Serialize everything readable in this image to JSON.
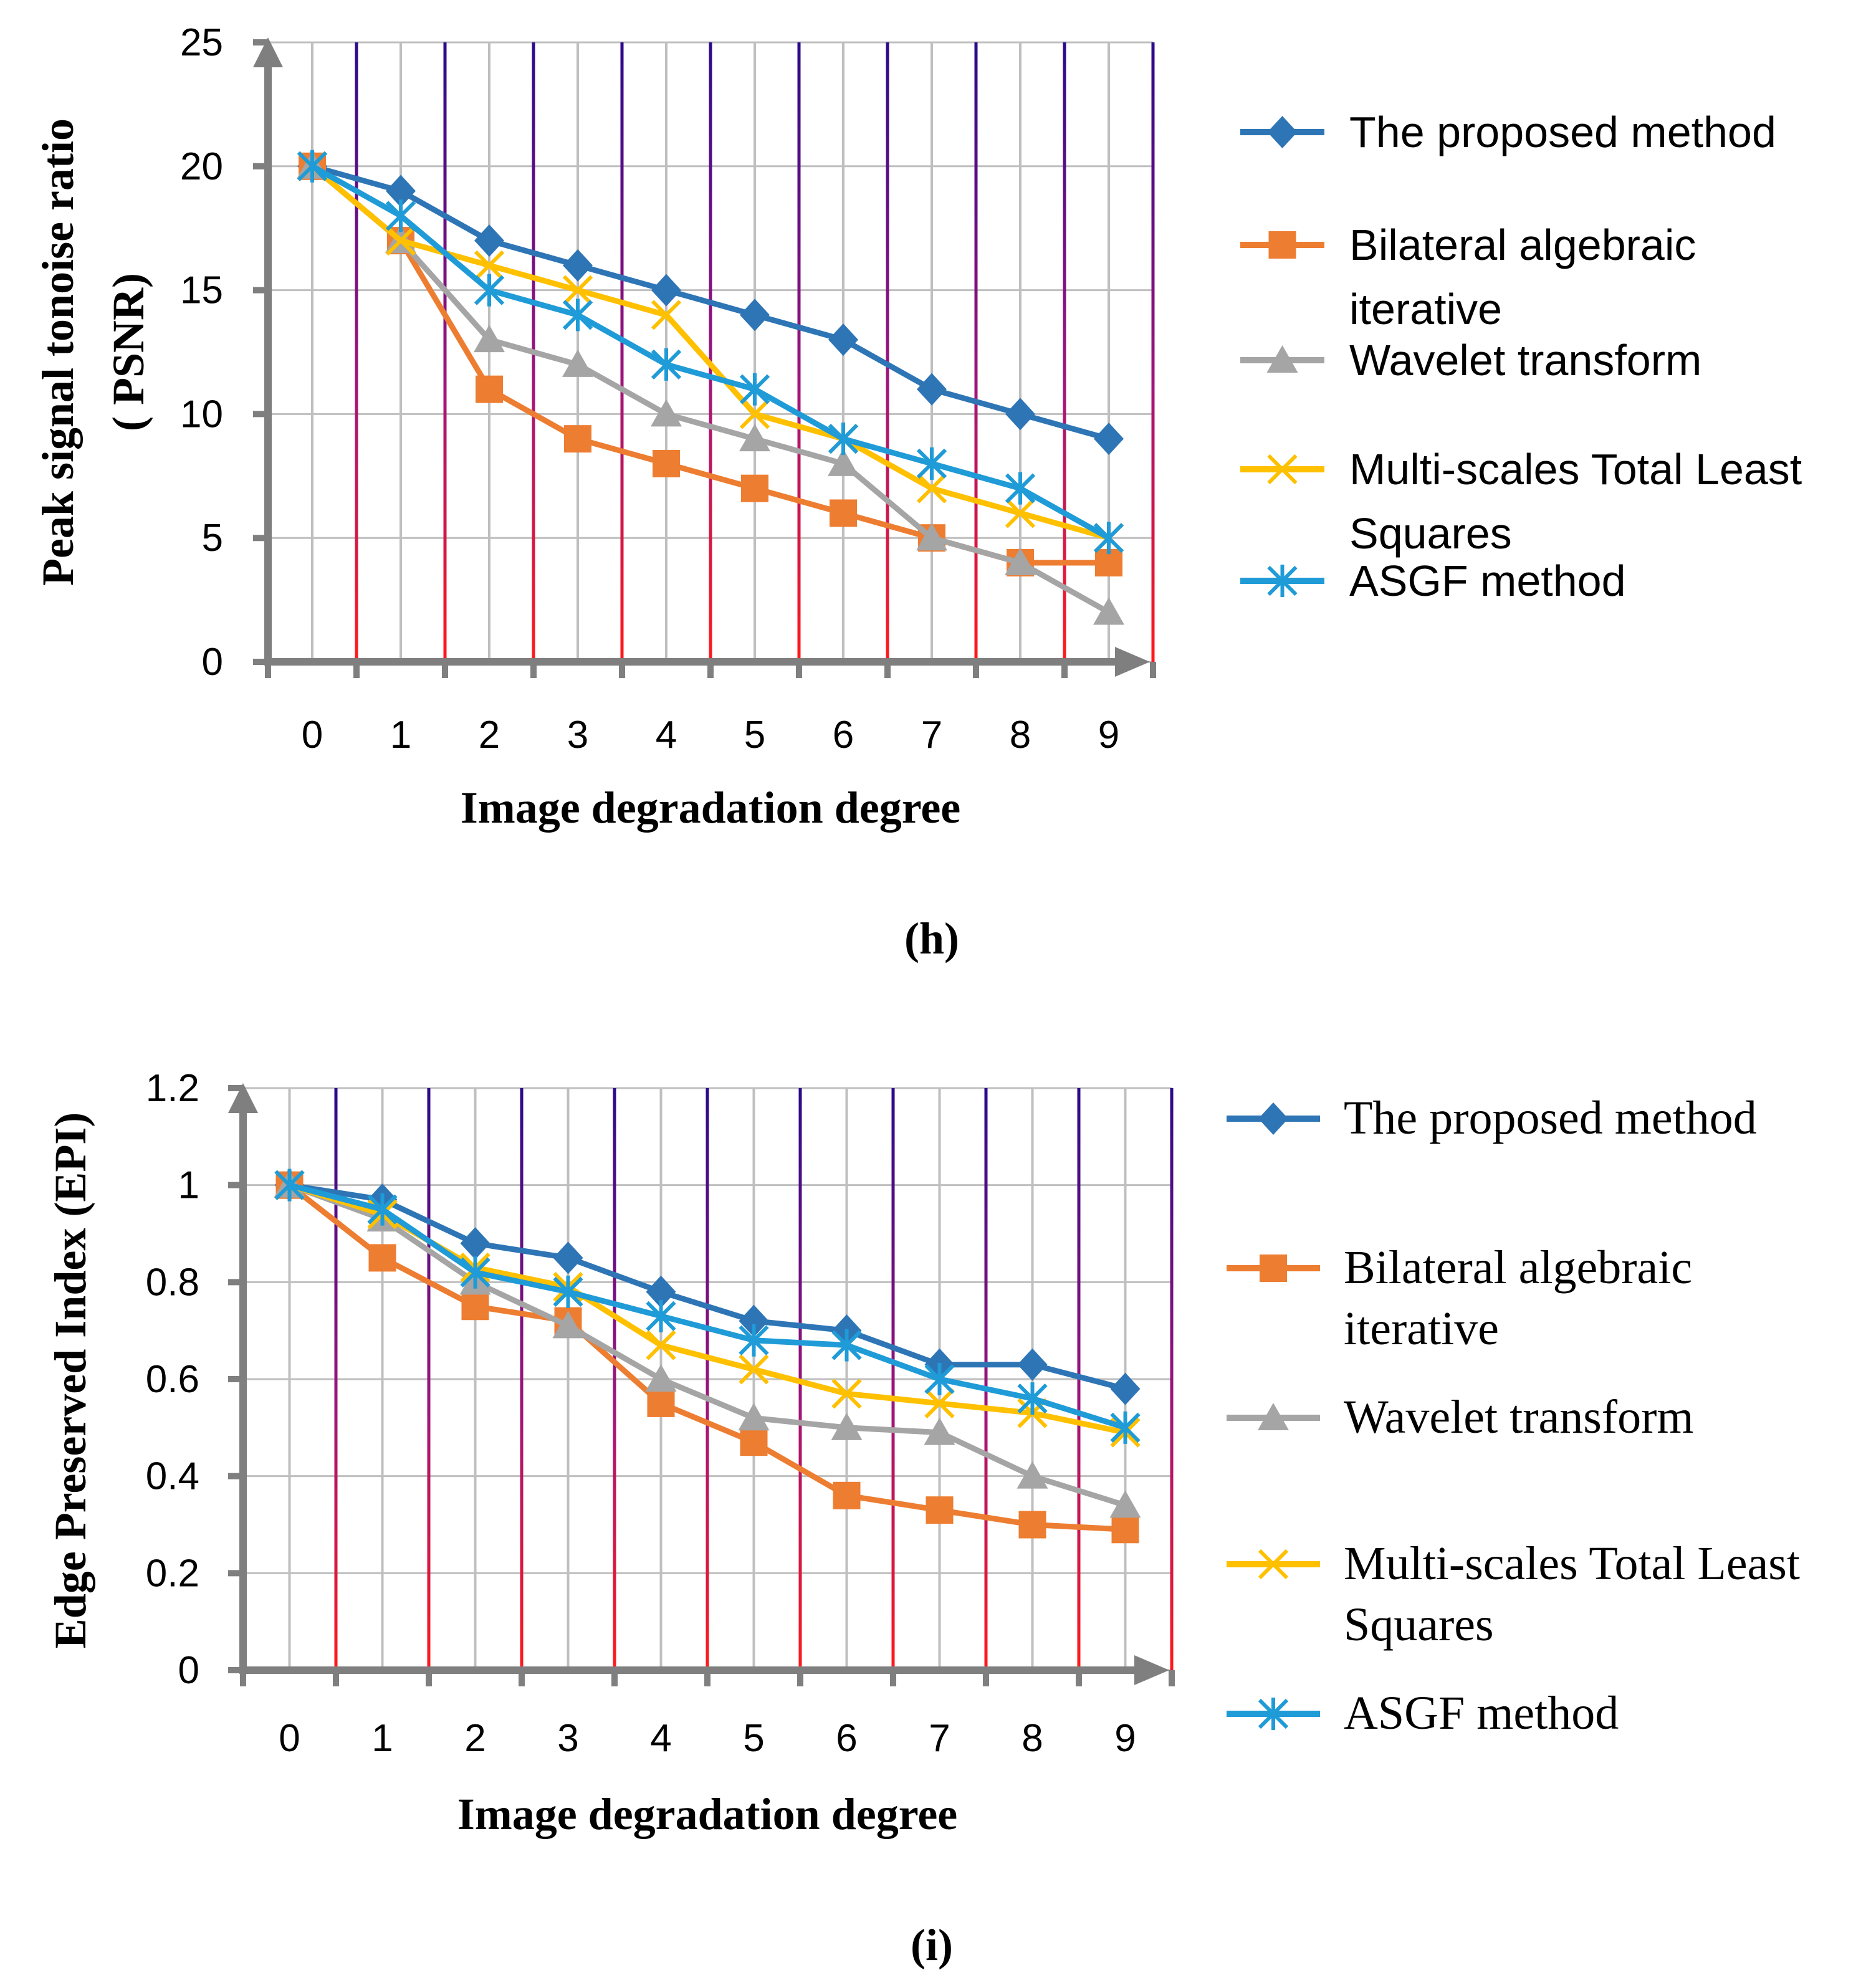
{
  "colors": {
    "axis": "#7f7f7f",
    "grid": "#bfbfbf",
    "stripe_top": "#2b0a8a",
    "stripe_bottom": "#ff1a1a"
  },
  "chart_data": [
    {
      "type": "line",
      "panel_caption": "(h)",
      "title": "",
      "xlabel": "Image degradation degree",
      "ylabel_lines": [
        "Peak signal tonoise ratio",
        "( PSNR)"
      ],
      "x": [
        0,
        1,
        2,
        3,
        4,
        5,
        6,
        7,
        8,
        9
      ],
      "x_tick_labels": [
        "0",
        "1",
        "2",
        "3",
        "4",
        "5",
        "6",
        "7",
        "8",
        "9"
      ],
      "ylim": [
        0,
        25
      ],
      "y_tick_labels": [
        "0",
        "5",
        "10",
        "15",
        "20",
        "25"
      ],
      "grid": true,
      "legend_position": "right",
      "series": [
        {
          "name": "The proposed method",
          "legend_lines": [
            "The proposed method"
          ],
          "color": "#2e75b6",
          "marker": "diamond",
          "values": [
            20,
            19,
            17,
            16,
            15,
            14,
            13,
            11,
            10,
            9
          ]
        },
        {
          "name": "Bilateral algebraic iterative",
          "legend_lines": [
            "Bilateral algebraic",
            "iterative"
          ],
          "color": "#ed7d31",
          "marker": "square",
          "values": [
            20,
            17,
            11,
            9,
            8,
            7,
            6,
            5,
            4,
            4
          ]
        },
        {
          "name": "Wavelet transform",
          "legend_lines": [
            "Wavelet transform"
          ],
          "color": "#a5a5a5",
          "marker": "triangle",
          "values": [
            20,
            17,
            13,
            12,
            10,
            9,
            8,
            5,
            4,
            2
          ]
        },
        {
          "name": "Multi-scales Total Least Squares",
          "legend_lines": [
            "Multi-scales Total Least",
            "Squares"
          ],
          "color": "#ffc000",
          "marker": "x",
          "values": [
            20,
            17,
            16,
            15,
            14,
            10,
            9,
            7,
            6,
            5
          ]
        },
        {
          "name": "ASGF method",
          "legend_lines": [
            "ASGF method"
          ],
          "color": "#1f9bd7",
          "marker": "star",
          "values": [
            20,
            18,
            15,
            14,
            12,
            11,
            9,
            8,
            7,
            5
          ]
        }
      ]
    },
    {
      "type": "line",
      "panel_caption": "(i)",
      "title": "",
      "xlabel": "Image degradation degree",
      "ylabel_lines": [
        "Edge Preserved Index (EPI)"
      ],
      "x": [
        0,
        1,
        2,
        3,
        4,
        5,
        6,
        7,
        8,
        9
      ],
      "x_tick_labels": [
        "0",
        "1",
        "2",
        "3",
        "4",
        "5",
        "6",
        "7",
        "8",
        "9"
      ],
      "ylim": [
        0,
        1.2
      ],
      "y_tick_labels": [
        "0",
        "0.2",
        "0.4",
        "0.6",
        "0.8",
        "1",
        "1.2"
      ],
      "grid": true,
      "legend_position": "right",
      "series": [
        {
          "name": "The proposed method",
          "legend_lines": [
            "The proposed method"
          ],
          "color": "#2e75b6",
          "marker": "diamond",
          "values": [
            1.0,
            0.97,
            0.88,
            0.85,
            0.78,
            0.72,
            0.7,
            0.63,
            0.63,
            0.58
          ]
        },
        {
          "name": "Bilateral algebraic iterative",
          "legend_lines": [
            "Bilateral algebraic",
            "iterative"
          ],
          "color": "#ed7d31",
          "marker": "square",
          "values": [
            1.0,
            0.85,
            0.75,
            0.72,
            0.55,
            0.47,
            0.36,
            0.33,
            0.3,
            0.29
          ]
        },
        {
          "name": "Wavelet transform",
          "legend_lines": [
            "Wavelet transform"
          ],
          "color": "#a5a5a5",
          "marker": "triangle",
          "values": [
            1.0,
            0.93,
            0.8,
            0.71,
            0.6,
            0.52,
            0.5,
            0.49,
            0.4,
            0.34
          ]
        },
        {
          "name": "Multi-scales Total Least Squares",
          "legend_lines": [
            "Multi-scales Total Least",
            "Squares"
          ],
          "color": "#ffc000",
          "marker": "x",
          "values": [
            1.0,
            0.94,
            0.83,
            0.79,
            0.67,
            0.62,
            0.57,
            0.55,
            0.53,
            0.49
          ]
        },
        {
          "name": "ASGF method",
          "legend_lines": [
            "ASGF method"
          ],
          "color": "#1f9bd7",
          "marker": "star",
          "values": [
            1.0,
            0.95,
            0.82,
            0.78,
            0.73,
            0.68,
            0.67,
            0.6,
            0.56,
            0.5
          ]
        }
      ]
    }
  ]
}
